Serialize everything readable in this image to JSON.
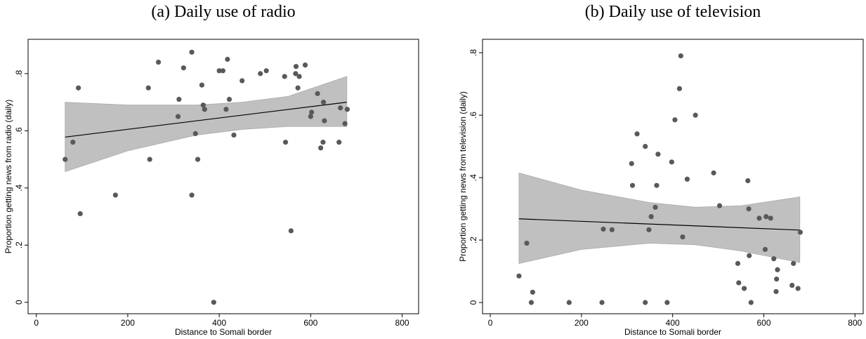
{
  "chart_data": [
    {
      "type": "scatter",
      "title": "(a) Daily use of radio",
      "x_label": "Distance to Somali border",
      "y_label": "Proportion getting news from radio (daily)",
      "xlim": [
        -18,
        836
      ],
      "ylim": [
        -0.04,
        0.92
      ],
      "xticks": [
        0,
        200,
        400,
        600,
        800
      ],
      "yticks": [
        0,
        {
          "value": 0.2,
          "label": ".2"
        },
        {
          "value": 0.4,
          "label": ".4"
        },
        {
          "value": 0.6,
          "label": ".6"
        },
        {
          "value": 0.8,
          "label": ".8"
        }
      ],
      "points": {
        "color": "#595959",
        "x": [
          63,
          80,
          92,
          96,
          173,
          245,
          248,
          267,
          310,
          312,
          322,
          340,
          340,
          348,
          353,
          362,
          365,
          368,
          388,
          400,
          408,
          415,
          418,
          422,
          432,
          450,
          490,
          503,
          543,
          545,
          557,
          567,
          568,
          572,
          575,
          588,
          600,
          602,
          615,
          622,
          627,
          628,
          630,
          662,
          665,
          675,
          680
        ],
        "y": [
          0.5,
          0.56,
          0.75,
          0.31,
          0.375,
          0.75,
          0.5,
          0.84,
          0.65,
          0.71,
          0.82,
          0.875,
          0.375,
          0.59,
          0.5,
          0.76,
          0.69,
          0.675,
          0,
          0.81,
          0.81,
          0.675,
          0.85,
          0.71,
          0.585,
          0.775,
          0.8,
          0.81,
          0.79,
          0.56,
          0.25,
          0.8,
          0.825,
          0.75,
          0.79,
          0.83,
          0.65,
          0.665,
          0.73,
          0.54,
          0.56,
          0.7,
          0.635,
          0.56,
          0.68,
          0.625,
          0.675
        ]
      },
      "fit": {
        "color": "#000000",
        "x": [
          63,
          679
        ],
        "y": [
          0.578,
          0.7
        ]
      },
      "band": {
        "color": "#c0c0c0",
        "x": [
          63,
          200,
          350,
          450,
          550,
          679
        ],
        "upper": [
          0.7,
          0.69,
          0.69,
          0.7,
          0.72,
          0.79
        ],
        "lower": [
          0.457,
          0.53,
          0.585,
          0.605,
          0.615,
          0.615
        ]
      }
    },
    {
      "type": "scatter",
      "title": "(b) Daily use of television",
      "x_label": "Distance to Somali border",
      "y_label": "Proportion getting news from television (daily)",
      "xlim": [
        -17,
        818
      ],
      "ylim": [
        -0.036,
        0.843
      ],
      "xticks": [
        0,
        200,
        400,
        600,
        800
      ],
      "yticks": [
        0,
        {
          "value": 0.2,
          "label": ".2"
        },
        {
          "value": 0.4,
          "label": ".4"
        },
        {
          "value": 0.6,
          "label": ".6"
        },
        {
          "value": 0.8,
          "label": ".8"
        }
      ],
      "points": {
        "color": "#595959",
        "x": [
          63,
          80,
          90,
          93,
          173,
          245,
          248,
          267,
          310,
          312,
          322,
          340,
          340,
          348,
          353,
          362,
          365,
          368,
          388,
          398,
          405,
          415,
          418,
          422,
          432,
          450,
          490,
          503,
          543,
          545,
          557,
          565,
          567,
          568,
          572,
          590,
          605,
          603,
          615,
          622,
          627,
          628,
          630,
          662,
          665,
          675,
          680
        ],
        "y": [
          0.085,
          0.19,
          0,
          0.033,
          0,
          0,
          0.235,
          0.233,
          0.445,
          0.375,
          0.54,
          0.5,
          0,
          0.233,
          0.275,
          0.305,
          0.375,
          0.475,
          0,
          0.45,
          0.585,
          0.685,
          0.79,
          0.21,
          0.395,
          0.6,
          0.415,
          0.31,
          0.125,
          0.063,
          0.045,
          0.39,
          0.3,
          0.15,
          0,
          0.27,
          0.275,
          0.17,
          0.27,
          0.14,
          0.035,
          0.075,
          0.105,
          0.055,
          0.125,
          0.045,
          0.225
        ]
      },
      "fit": {
        "color": "#000000",
        "x": [
          63,
          679
        ],
        "y": [
          0.268,
          0.232
        ]
      },
      "band": {
        "color": "#c0c0c0",
        "x": [
          63,
          200,
          350,
          450,
          550,
          679
        ],
        "upper": [
          0.415,
          0.36,
          0.32,
          0.305,
          0.31,
          0.338
        ],
        "lower": [
          0.125,
          0.17,
          0.19,
          0.185,
          0.165,
          0.128
        ]
      }
    }
  ]
}
